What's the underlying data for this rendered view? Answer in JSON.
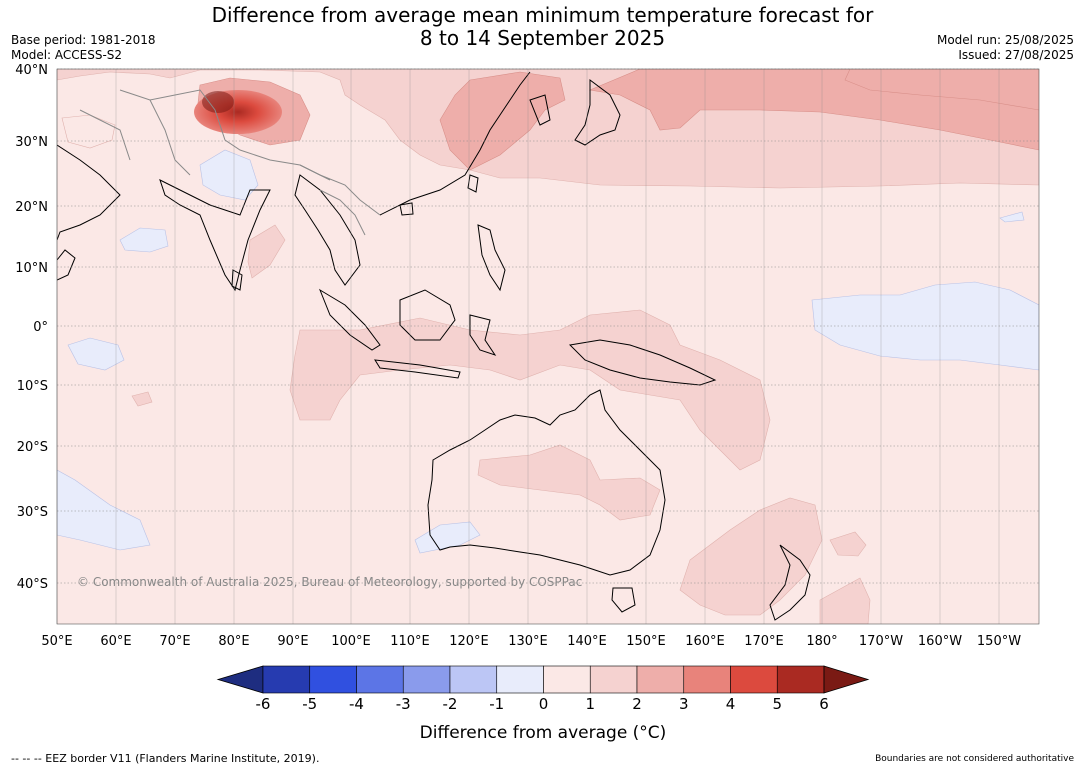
{
  "title": {
    "line1": "Difference from average mean minimum temperature forecast for",
    "line2": "8 to 14 September 2025"
  },
  "meta": {
    "base_period": "Base period: 1981-2018",
    "model": "Model: ACCESS-S2",
    "model_run": "Model run: 25/08/2025",
    "issued": "Issued: 27/08/2025"
  },
  "map": {
    "lat_labels": [
      "40°N",
      "30°N",
      "20°N",
      "10°N",
      "0°",
      "10°S",
      "20°S",
      "30°S",
      "40°S"
    ],
    "lon_labels": [
      "50°E",
      "60°E",
      "70°E",
      "80°E",
      "90°E",
      "100°E",
      "110°E",
      "120°E",
      "130°E",
      "140°E",
      "150°E",
      "160°E",
      "170°E",
      "180°",
      "170°W",
      "160°W",
      "150°W"
    ],
    "copyright": "© Commonwealth of Australia 2025, Bureau of Meteorology, supported by COSPPac",
    "base_fill": "#fbe8e6"
  },
  "colorbar": {
    "ticks": [
      "-6",
      "-5",
      "-4",
      "-3",
      "-2",
      "-1",
      "0",
      "1",
      "2",
      "3",
      "4",
      "5",
      "6"
    ],
    "colors": [
      "#1e2d80",
      "#263bb0",
      "#3050e0",
      "#5c75e6",
      "#8a9bec",
      "#bcc6f5",
      "#e8ecfb",
      "#fbe8e6",
      "#f5d2d0",
      "#eeaeaa",
      "#e8837b",
      "#dc4a3e",
      "#aa2a22",
      "#7a1a14"
    ],
    "label": "Difference from average (°C)"
  },
  "footer": {
    "eez": "--  --  -- EEZ border V11 (Flanders Marine Institute, 2019).",
    "boundaries": "Boundaries are not considered authoritative"
  }
}
